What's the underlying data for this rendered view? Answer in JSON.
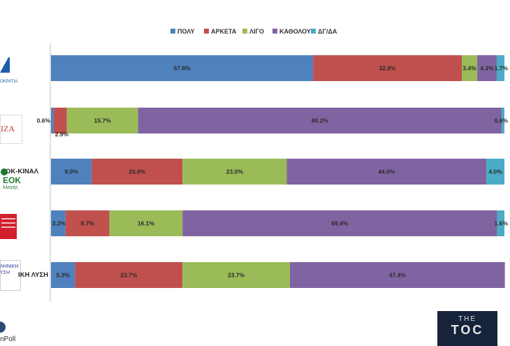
{
  "chart_data": {
    "type": "bar",
    "orientation": "horizontal-stacked",
    "categories": [
      "ΝΔ",
      "ΣΥΡΙΖΑ",
      "ΠΑΣΟΚ-ΚΙΝΑΛ",
      "ΚΚΕ",
      "ΕΛΛΗΝΙΚΗ ΛΥΣΗ"
    ],
    "series": [
      {
        "name": "ΠΟΛΥ",
        "color": "#4f81bd",
        "values": [
          57.8,
          0.6,
          9.0,
          3.2,
          5.3
        ]
      },
      {
        "name": "ΑΡΚΕΤΑ",
        "color": "#c0504d",
        "values": [
          32.8,
          2.9,
          20.0,
          9.7,
          23.7
        ]
      },
      {
        "name": "ΛΙΓΟ",
        "color": "#9bbb59",
        "values": [
          3.4,
          15.7,
          23.0,
          16.1,
          23.7
        ]
      },
      {
        "name": "ΚΑΘΟΛΟΥ",
        "color": "#8064a2",
        "values": [
          4.3,
          80.2,
          44.0,
          69.4,
          47.4
        ]
      },
      {
        "name": "ΔΓ/ΔΑ",
        "color": "#4bacc6",
        "values": [
          1.7,
          0.6,
          4.0,
          1.6,
          0.0
        ]
      }
    ],
    "value_labels": [
      [
        "57.8%",
        "32.8%",
        "3.4%",
        "4.3%",
        "1.7%"
      ],
      [
        "0.6%",
        "2.9%",
        "15.7%",
        "80.2%",
        "0.6%"
      ],
      [
        "9.0%",
        "20.0%",
        "23.0%",
        "44.0%",
        "4.0%"
      ],
      [
        "3.2%",
        "9.7%",
        "16.1%",
        "69.4%",
        "1.6%"
      ],
      [
        "5.3%",
        "23.7%",
        "23.7%",
        "47.4%",
        ""
      ]
    ],
    "xlim": [
      0,
      100
    ],
    "legend_position": "top",
    "grid": false
  },
  "party_logos": [
    {
      "icon": "nd-logo",
      "text": "ΟΚΡΑΤΙΑ",
      "color": "#1f5fa8"
    },
    {
      "icon": "syriza-logo",
      "text": "ΙΖΑ",
      "color": "#c0392b"
    },
    {
      "icon": "pasok-logo",
      "text": "ΟΚ-ΚΙΝΑΛ",
      "sub": "ΕΟΚ",
      "sub2": "λλαγής",
      "color": "#1b7a2e"
    },
    {
      "icon": "kke-logo",
      "text": "",
      "color": "#d11f2e"
    },
    {
      "icon": "elliniki-lysi-logo",
      "text": "ΙΚΗ ΛΥΣΗ",
      "sub": "ΛΗΝΙΚΗ",
      "sub2": "ΥΣΗ",
      "color": "#2d3e8f"
    }
  ],
  "footer": {
    "pollster": "nPoll",
    "badge_top": "THE",
    "badge_main": "TOC"
  }
}
